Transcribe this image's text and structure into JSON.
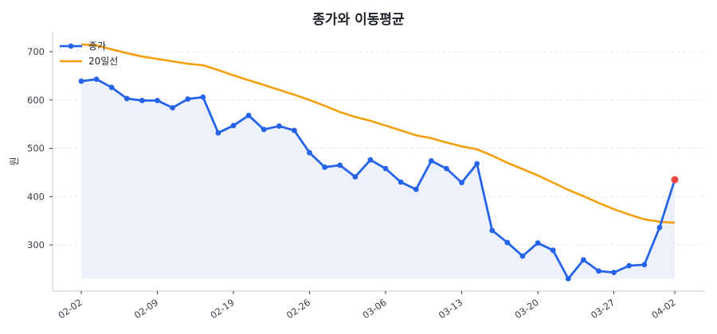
{
  "chart_data": {
    "type": "line",
    "title": "종가와 이동평균",
    "xlabel": "",
    "ylabel": "원",
    "ylim": [
      205,
      740
    ],
    "yticks": [
      300,
      400,
      500,
      600,
      700
    ],
    "xtick_labels": [
      "02-02",
      "02-09",
      "02-19",
      "02-26",
      "03-06",
      "03-13",
      "03-20",
      "03-27",
      "04-02"
    ],
    "xtick_indices": [
      0,
      5,
      10,
      15,
      20,
      25,
      30,
      35,
      39
    ],
    "grid": "horizontal dashed",
    "legend_position": "upper left",
    "series": [
      {
        "name": "종가",
        "color": "#2563eb",
        "marker": "circle",
        "fill": "#ebf0fc",
        "last_point_color": "#ef4444",
        "values": [
          639,
          643,
          626,
          603,
          599,
          599,
          584,
          602,
          606,
          532,
          547,
          568,
          539,
          546,
          537,
          491,
          461,
          465,
          441,
          476,
          458,
          430,
          415,
          474,
          458,
          429,
          468,
          330,
          305,
          277,
          304,
          289,
          230,
          269,
          246,
          243,
          257,
          259,
          336,
          435
        ]
      },
      {
        "name": "20일선",
        "color": "#f59e0b",
        "marker": "none",
        "values": [
          715,
          713,
          705,
          697,
          690,
          685,
          680,
          675,
          672,
          662,
          651,
          641,
          631,
          621,
          611,
          600,
          588,
          575,
          565,
          557,
          547,
          537,
          527,
          521,
          512,
          504,
          498,
          485,
          470,
          457,
          444,
          429,
          414,
          401,
          387,
          374,
          363,
          353,
          348,
          346
        ]
      }
    ]
  }
}
